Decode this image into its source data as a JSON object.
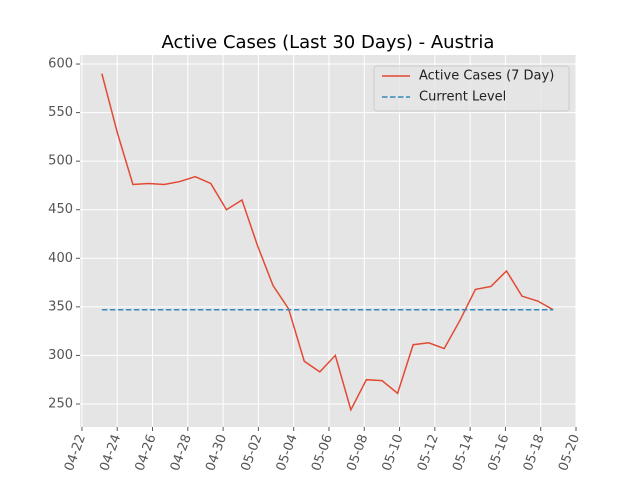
{
  "chart_data": {
    "type": "line",
    "title": "Active Cases (Last 30 Days) - Austria",
    "x": [
      114.13,
      115.01,
      115.89,
      116.78,
      117.66,
      118.54,
      119.42,
      120.3,
      121.19,
      122.07,
      122.95,
      123.83,
      124.71,
      125.6,
      126.48,
      127.36,
      128.24,
      129.12,
      130.01,
      130.89,
      131.77,
      132.65,
      133.53,
      134.42,
      135.3,
      136.18,
      137.06,
      137.94,
      138.83,
      139.71
    ],
    "series": [
      {
        "name": "Active Cases (7 Day)",
        "color": "#E24A33",
        "values": [
          590,
          529,
          476,
          477,
          476,
          479,
          484,
          477,
          450,
          460,
          413,
          372,
          348,
          294,
          283,
          300,
          244,
          275,
          274,
          261,
          311,
          313,
          307,
          336,
          368,
          371,
          387,
          361,
          356,
          347
        ]
      }
    ],
    "current_level": {
      "name": "Current Level",
      "color": "#348ABD",
      "value": 347
    },
    "xlim": [
      112.89,
      141
    ],
    "xticks": [
      {
        "value": 113,
        "label": "04-22"
      },
      {
        "value": 115,
        "label": "04-24"
      },
      {
        "value": 117,
        "label": "04-26"
      },
      {
        "value": 119,
        "label": "04-28"
      },
      {
        "value": 121,
        "label": "04-30"
      },
      {
        "value": 123,
        "label": "05-02"
      },
      {
        "value": 125,
        "label": "05-04"
      },
      {
        "value": 127,
        "label": "05-06"
      },
      {
        "value": 129,
        "label": "05-08"
      },
      {
        "value": 131,
        "label": "05-10"
      },
      {
        "value": 133,
        "label": "05-12"
      },
      {
        "value": 135,
        "label": "05-14"
      },
      {
        "value": 137,
        "label": "05-16"
      },
      {
        "value": 139,
        "label": "05-18"
      },
      {
        "value": 141,
        "label": "05-20"
      }
    ],
    "ylim": [
      226.3,
      609.3
    ],
    "yticks": [
      250,
      300,
      350,
      400,
      450,
      500,
      550,
      600
    ],
    "grid": true,
    "legend": "upper right"
  }
}
